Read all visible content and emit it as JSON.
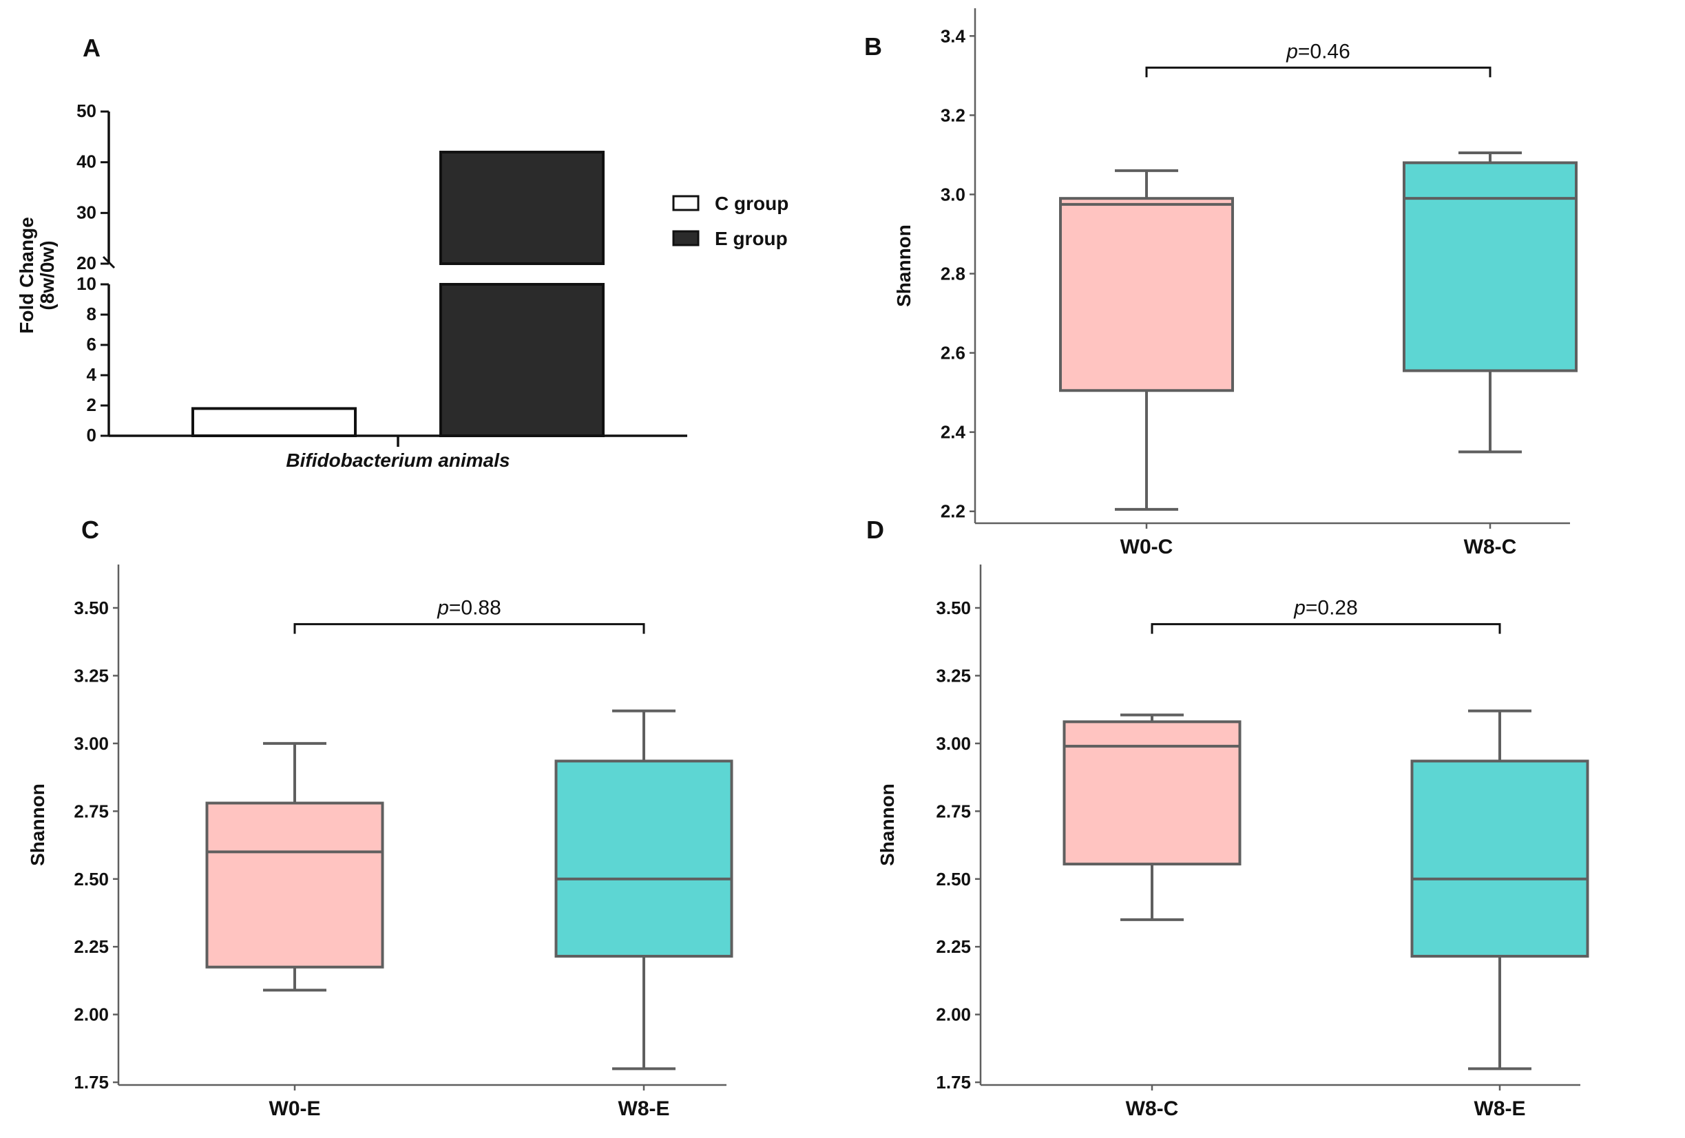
{
  "chart_data": [
    {
      "panel": "A",
      "type": "bar",
      "ylabel": "Fold Change",
      "ylabel2": "(8w/0w)",
      "xlabel": "Bifidobacterium animals",
      "broken_axis": {
        "lower": [
          0,
          10
        ],
        "upper": [
          20,
          50
        ]
      },
      "lower_ticks": [
        0,
        2,
        4,
        6,
        8,
        10
      ],
      "upper_ticks": [
        20,
        30,
        40,
        50
      ],
      "series": [
        {
          "name": "C group",
          "value": 1.8,
          "color": "#ffffff"
        },
        {
          "name": "E group",
          "value": 42,
          "color": "#2b2b2b"
        }
      ],
      "legend": [
        {
          "label": "C group",
          "color": "#ffffff"
        },
        {
          "label": "E group",
          "color": "#2b2b2b"
        }
      ]
    },
    {
      "panel": "B",
      "type": "box",
      "ylabel": "Shannon",
      "ylim": [
        2.17,
        3.47
      ],
      "yticks": [
        "2.2",
        "2.4",
        "2.6",
        "2.8",
        "3.0",
        "3.2",
        "3.4"
      ],
      "categories": [
        "W0-C",
        "W8-C"
      ],
      "boxes": [
        {
          "min": 2.205,
          "q1": 2.505,
          "median": 2.975,
          "q3": 2.99,
          "max": 3.06,
          "color": "#ffc4c1"
        },
        {
          "min": 2.35,
          "q1": 2.555,
          "median": 2.99,
          "q3": 3.08,
          "max": 3.105,
          "color": "#5dd6d3"
        }
      ],
      "p_prefix": "p",
      "p_value": "=0.46",
      "bracket_y": 3.32
    },
    {
      "panel": "C",
      "type": "box",
      "ylabel": "Shannon",
      "ylim": [
        1.74,
        3.66
      ],
      "yticks": [
        "1.75",
        "2.00",
        "2.25",
        "2.50",
        "2.75",
        "3.00",
        "3.25",
        "3.50"
      ],
      "categories": [
        "W0-E",
        "W8-E"
      ],
      "boxes": [
        {
          "min": 2.09,
          "q1": 2.175,
          "median": 2.6,
          "q3": 2.78,
          "max": 3.0,
          "color": "#ffc4c1"
        },
        {
          "min": 1.8,
          "q1": 2.215,
          "median": 2.5,
          "q3": 2.935,
          "max": 3.12,
          "color": "#5dd6d3"
        }
      ],
      "p_prefix": "p",
      "p_value": "=0.88",
      "bracket_y": 3.44
    },
    {
      "panel": "D",
      "type": "box",
      "ylabel": "Shannon",
      "ylim": [
        1.74,
        3.66
      ],
      "yticks": [
        "1.75",
        "2.00",
        "2.25",
        "2.50",
        "2.75",
        "3.00",
        "3.25",
        "3.50"
      ],
      "categories": [
        "W8-C",
        "W8-E"
      ],
      "boxes": [
        {
          "min": 2.35,
          "q1": 2.555,
          "median": 2.99,
          "q3": 3.08,
          "max": 3.105,
          "color": "#ffc4c1"
        },
        {
          "min": 1.8,
          "q1": 2.215,
          "median": 2.5,
          "q3": 2.935,
          "max": 3.12,
          "color": "#5dd6d3"
        }
      ],
      "p_prefix": "p",
      "p_value": "=0.28",
      "bracket_y": 3.44
    }
  ]
}
